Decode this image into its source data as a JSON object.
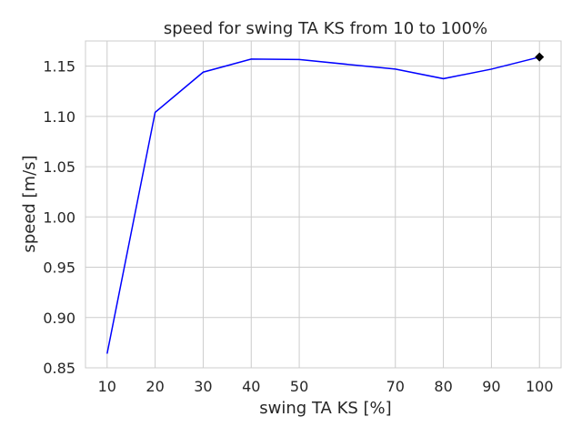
{
  "chart_data": {
    "type": "line",
    "title": "speed for swing TA KS from 10 to 100%",
    "xlabel": "swing TA KS [%]",
    "ylabel": "speed [m/s]",
    "xlim": [
      5.5,
      104.5
    ],
    "ylim": [
      0.85,
      1.175
    ],
    "xticks": [
      10,
      20,
      30,
      40,
      50,
      70,
      80,
      90,
      100
    ],
    "yticks": [
      0.85,
      0.9,
      0.95,
      1.0,
      1.05,
      1.1,
      1.15
    ],
    "ytick_labels": [
      "0.85",
      "0.90",
      "0.95",
      "1.00",
      "1.05",
      "1.10",
      "1.15"
    ],
    "grid": true,
    "series": [
      {
        "color": "#0000ff",
        "x": [
          10,
          20,
          30,
          40,
          50,
          70,
          80,
          90,
          100
        ],
        "y": [
          0.864,
          1.104,
          1.144,
          1.157,
          1.1565,
          1.147,
          1.1375,
          1.147,
          1.159
        ]
      }
    ],
    "highlight_point": {
      "x": 100,
      "y": 1.159,
      "color": "#000000",
      "marker": "diamond"
    }
  }
}
